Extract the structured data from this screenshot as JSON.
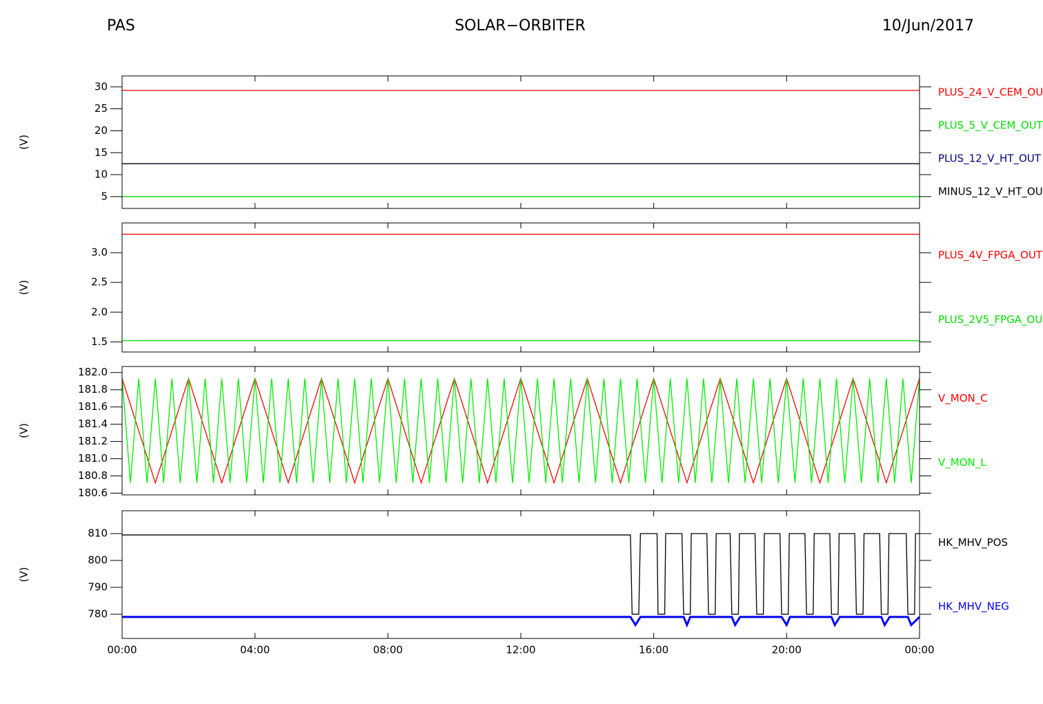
{
  "header": {
    "left": "PAS",
    "center": "SOLAR−ORBITER",
    "right": "10/Jun/2017"
  },
  "chart_data": [
    {
      "type": "line",
      "ylabel": "(V)",
      "xlim": [
        0,
        24
      ],
      "xticks": [
        0,
        4,
        8,
        12,
        16,
        20,
        24
      ],
      "ylim": [
        2.3,
        32.5
      ],
      "yticks": [
        5,
        10,
        15,
        20,
        25,
        30
      ],
      "series": [
        {
          "name": "PLUS_24_V_CEM_OU",
          "color": "#ff0000",
          "x": [
            0,
            24
          ],
          "values": [
            29.2,
            29.2
          ]
        },
        {
          "name": "PLUS_5_V_CEM_OUT",
          "color": "#00dd00",
          "x": [
            0,
            24
          ],
          "values": [
            5.0,
            5.0
          ]
        },
        {
          "name": "PLUS_12_V_HT_OUT",
          "color": "#000080",
          "x": [
            0,
            24
          ],
          "values": [
            12.5,
            12.5
          ]
        },
        {
          "name": "MINUS_12_V_HT_OU",
          "color": "#000000",
          "x": [
            0,
            24
          ],
          "values": [
            12.5,
            12.5
          ]
        }
      ]
    },
    {
      "type": "line",
      "ylabel": "(V)",
      "xlim": [
        0,
        24
      ],
      "xticks": [
        0,
        4,
        8,
        12,
        16,
        20,
        24
      ],
      "ylim": [
        1.33,
        3.5
      ],
      "yticks": [
        1.5,
        {
          "value": 2,
          "label": "2.0"
        },
        2.5,
        {
          "value": 3,
          "label": "3.0"
        }
      ],
      "series": [
        {
          "name": "PLUS_4V_FPGA_OUT",
          "color": "#ff0000",
          "x": [
            0,
            24
          ],
          "values": [
            3.31,
            3.31
          ]
        },
        {
          "name": "PLUS_2V5_FPGA_OU",
          "color": "#00dd00",
          "x": [
            0,
            24
          ],
          "values": [
            1.52,
            1.52
          ]
        }
      ]
    },
    {
      "type": "line",
      "ylabel": "(V)",
      "xlim": [
        0,
        24
      ],
      "xticks": [
        0,
        4,
        8,
        12,
        16,
        20,
        24
      ],
      "ylim": [
        180.58,
        182.07
      ],
      "yticks": [
        180.6,
        180.8,
        {
          "value": 181,
          "label": "181.0"
        },
        181.2,
        181.4,
        181.6,
        181.8,
        {
          "value": 182,
          "label": "182.0"
        }
      ],
      "series": [
        {
          "name": "V_MON_C",
          "color": "#ff0000",
          "x": [
            0,
            1,
            2,
            3,
            4,
            5,
            6,
            7,
            8,
            9,
            10,
            11,
            12,
            13,
            14,
            15,
            16,
            17,
            18,
            19,
            20,
            21,
            22,
            23,
            24
          ],
          "values": [
            181.93,
            180.72,
            181.93,
            180.72,
            181.93,
            180.72,
            181.93,
            180.72,
            181.93,
            180.72,
            181.93,
            180.72,
            181.93,
            180.72,
            181.93,
            180.72,
            181.93,
            180.72,
            181.93,
            180.72,
            181.93,
            180.72,
            181.93,
            180.72,
            181.93
          ]
        },
        {
          "name": "V_MON_L",
          "color": "#00ee00",
          "x": [
            0,
            0.25,
            0.5,
            0.75,
            1,
            1.25,
            1.5,
            1.75,
            2,
            2.25,
            2.5,
            2.75,
            3,
            3.25,
            3.5,
            3.75,
            4,
            4.25,
            4.5,
            4.75,
            5,
            5.25,
            5.5,
            5.75,
            6,
            6.25,
            6.5,
            6.75,
            7,
            7.25,
            7.5,
            7.75,
            8,
            8.25,
            8.5,
            8.75,
            9,
            9.25,
            9.5,
            9.75,
            10,
            10.25,
            10.5,
            10.75,
            11,
            11.25,
            11.5,
            11.75,
            12,
            12.25,
            12.5,
            12.75,
            13,
            13.25,
            13.5,
            13.75,
            14,
            14.25,
            14.5,
            14.75,
            15,
            15.25,
            15.5,
            15.75,
            16,
            16.25,
            16.5,
            16.75,
            17,
            17.25,
            17.5,
            17.75,
            18,
            18.25,
            18.5,
            18.75,
            19,
            19.25,
            19.5,
            19.75,
            20,
            20.25,
            20.5,
            20.75,
            21,
            21.25,
            21.5,
            21.75,
            22,
            22.25,
            22.5,
            22.75,
            23,
            23.25,
            23.5,
            23.75,
            24
          ],
          "values": [
            181.93,
            180.72,
            181.93,
            180.72,
            181.93,
            180.72,
            181.93,
            180.72,
            181.93,
            180.72,
            181.93,
            180.72,
            181.93,
            180.72,
            181.93,
            180.72,
            181.93,
            180.72,
            181.93,
            180.72,
            181.93,
            180.72,
            181.93,
            180.72,
            181.93,
            180.72,
            181.93,
            180.72,
            181.93,
            180.72,
            181.93,
            180.72,
            181.93,
            180.72,
            181.93,
            180.72,
            181.93,
            180.72,
            181.93,
            180.72,
            181.93,
            180.72,
            181.93,
            180.72,
            181.93,
            180.72,
            181.93,
            180.72,
            181.93,
            180.72,
            181.93,
            180.72,
            181.93,
            180.72,
            181.93,
            180.72,
            181.93,
            180.72,
            181.93,
            180.72,
            181.93,
            180.72,
            181.93,
            180.72,
            181.93,
            180.72,
            181.93,
            180.72,
            181.93,
            180.72,
            181.93,
            180.72,
            181.93,
            180.72,
            181.93,
            180.72,
            181.93,
            180.72,
            181.93,
            180.72,
            181.93,
            180.72,
            181.93,
            180.72,
            181.93,
            180.72,
            181.93,
            180.72,
            181.93,
            180.72,
            181.93,
            180.72,
            181.93,
            180.72,
            181.93,
            180.72,
            181.93
          ]
        }
      ]
    },
    {
      "type": "line",
      "ylabel": "(V)",
      "xlim": [
        0,
        24
      ],
      "xticks": [
        {
          "value": 0,
          "label": "00:00"
        },
        {
          "value": 4,
          "label": "04:00"
        },
        {
          "value": 8,
          "label": "08:00"
        },
        {
          "value": 12,
          "label": "12:00"
        },
        {
          "value": 16,
          "label": "16:00"
        },
        {
          "value": 20,
          "label": "20:00"
        },
        {
          "value": 24,
          "label": "00:00"
        }
      ],
      "ylim": [
        771,
        818.5
      ],
      "yticks": [
        780,
        790,
        800,
        810
      ],
      "series": [
        {
          "name": "HK_MHV_POS",
          "color": "#000000",
          "x": [
            0,
            15.3,
            15.35,
            15.55,
            15.6,
            16.1,
            16.13,
            16.33,
            16.36,
            16.85,
            16.9,
            17.1,
            17.13,
            17.6,
            17.65,
            17.85,
            17.88,
            18.3,
            18.35,
            18.55,
            18.58,
            19.05,
            19.1,
            19.3,
            19.33,
            19.8,
            19.85,
            20.05,
            20.08,
            20.55,
            20.6,
            20.8,
            20.83,
            21.3,
            21.35,
            21.55,
            21.58,
            22.05,
            22.1,
            22.3,
            22.33,
            22.8,
            22.85,
            23.05,
            23.08,
            23.6,
            23.65,
            23.85,
            23.88,
            24
          ],
          "values": [
            809.5,
            809.5,
            780,
            780,
            810,
            810,
            780,
            780,
            810,
            810,
            780,
            780,
            810,
            810,
            780,
            780,
            810,
            810,
            780,
            780,
            810,
            810,
            780,
            780,
            810,
            810,
            780,
            780,
            810,
            810,
            780,
            780,
            810,
            810,
            780,
            780,
            810,
            810,
            780,
            780,
            810,
            810,
            780,
            780,
            810,
            810,
            780,
            780,
            810,
            810
          ]
        },
        {
          "name": "HK_MHV_NEG",
          "color": "#0000ff",
          "x": [
            0,
            15.3,
            15.45,
            15.6,
            16.9,
            17.0,
            17.1,
            18.35,
            18.45,
            18.6,
            19.85,
            20.0,
            20.1,
            21.35,
            21.45,
            21.6,
            22.85,
            22.95,
            23.1,
            23.65,
            23.75,
            24
          ],
          "values": [
            779,
            779,
            776,
            779,
            779,
            776,
            779,
            779,
            776,
            779,
            779,
            776,
            779,
            779,
            776,
            779,
            779,
            776,
            779,
            779,
            776,
            779
          ]
        }
      ]
    }
  ]
}
